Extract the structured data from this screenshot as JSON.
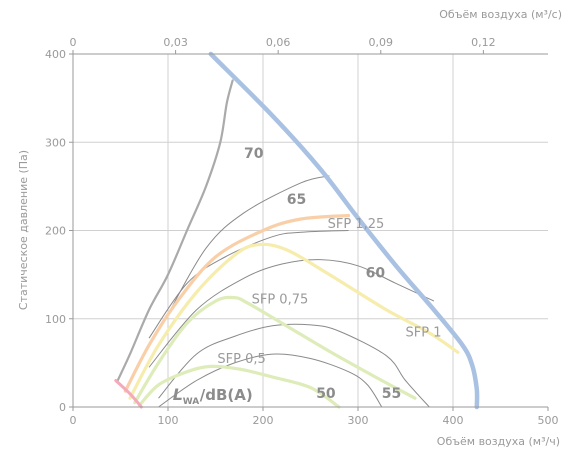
{
  "chart_data": {
    "type": "line",
    "xlabel": "Объём воздуха (м³/ч)",
    "x2label": "Объём воздуха (м³/с)",
    "ylabel": "Статическое давление (Па)",
    "xlim": [
      0,
      500
    ],
    "ylim": [
      0,
      400
    ],
    "x2lim": [
      0,
      0.1389
    ],
    "xticks": [
      "0",
      "100",
      "200",
      "300",
      "400",
      "500"
    ],
    "yticks": [
      "0",
      "100",
      "200",
      "300",
      "400"
    ],
    "x2ticks": [
      "0",
      "0,03",
      "0,06",
      "0,09",
      "0,12"
    ],
    "x2tick_values": [
      0,
      0.03,
      0.06,
      0.09,
      0.12
    ],
    "grid": true,
    "noise_unit_label": {
      "main": "L",
      "sub": "WA",
      "rest": "/dB(A)"
    },
    "series": [
      {
        "name": "fan-curve-max",
        "color": "#a9c1e2",
        "points": [
          [
            145,
            400
          ],
          [
            210,
            330
          ],
          [
            260,
            270
          ],
          [
            300,
            214
          ],
          [
            340,
            160
          ],
          [
            380,
            110
          ],
          [
            410,
            70
          ],
          [
            420,
            48
          ],
          [
            425,
            20
          ],
          [
            425,
            0
          ]
        ]
      },
      {
        "name": "left-limit",
        "color": "#aaaaaa",
        "points": [
          [
            47,
            30
          ],
          [
            60,
            60
          ],
          [
            80,
            110
          ],
          [
            100,
            150
          ],
          [
            120,
            200
          ],
          [
            140,
            250
          ],
          [
            155,
            300
          ],
          [
            162,
            345
          ],
          [
            168,
            370
          ]
        ]
      },
      {
        "name": "SFP 1,25",
        "color": "#f9cfa8",
        "points": [
          [
            55,
            18
          ],
          [
            80,
            70
          ],
          [
            110,
            120
          ],
          [
            150,
            170
          ],
          [
            200,
            200
          ],
          [
            240,
            213
          ],
          [
            290,
            217
          ]
        ]
      },
      {
        "name": "SFP 1",
        "color": "#f6ecac",
        "points": [
          [
            60,
            10
          ],
          [
            90,
            70
          ],
          [
            130,
            130
          ],
          [
            170,
            172
          ],
          [
            195,
            184
          ],
          [
            225,
            178
          ],
          [
            270,
            150
          ],
          [
            330,
            110
          ],
          [
            375,
            84
          ],
          [
            405,
            62
          ]
        ]
      },
      {
        "name": "SFP 0,75",
        "color": "#ddecb8",
        "points": [
          [
            65,
            5
          ],
          [
            90,
            50
          ],
          [
            120,
            95
          ],
          [
            150,
            120
          ],
          [
            170,
            124
          ],
          [
            185,
            117
          ],
          [
            220,
            95
          ],
          [
            270,
            63
          ],
          [
            320,
            33
          ],
          [
            360,
            10
          ]
        ]
      },
      {
        "name": "SFP 0,5",
        "color": "#ddecb8",
        "points": [
          [
            70,
            2
          ],
          [
            90,
            25
          ],
          [
            120,
            40
          ],
          [
            145,
            46
          ],
          [
            175,
            43
          ],
          [
            210,
            34
          ],
          [
            250,
            22
          ],
          [
            280,
            0
          ]
        ]
      }
    ],
    "iso_noise_curves": [
      {
        "label": "70",
        "points": [
          [
            100,
            105
          ],
          [
            140,
            180
          ],
          [
            180,
            220
          ],
          [
            240,
            254
          ],
          [
            270,
            262
          ]
        ]
      },
      {
        "label": "65",
        "points": [
          [
            80,
            78
          ],
          [
            120,
            140
          ],
          [
            160,
            170
          ],
          [
            210,
            193
          ],
          [
            240,
            198
          ],
          [
            290,
            200
          ]
        ]
      },
      {
        "label": "60",
        "points": [
          [
            80,
            45
          ],
          [
            130,
            110
          ],
          [
            180,
            146
          ],
          [
            220,
            162
          ],
          [
            260,
            167
          ],
          [
            300,
            160
          ],
          [
            340,
            140
          ],
          [
            380,
            120
          ]
        ]
      },
      {
        "label": "55",
        "points": [
          [
            90,
            10
          ],
          [
            130,
            60
          ],
          [
            170,
            80
          ],
          [
            210,
            92
          ],
          [
            250,
            93
          ],
          [
            280,
            86
          ],
          [
            330,
            58
          ],
          [
            350,
            30
          ],
          [
            375,
            0
          ]
        ]
      },
      {
        "label": "50",
        "points": [
          [
            90,
            0
          ],
          [
            130,
            30
          ],
          [
            170,
            50
          ],
          [
            210,
            60
          ],
          [
            250,
            55
          ],
          [
            290,
            40
          ],
          [
            310,
            25
          ],
          [
            325,
            0
          ]
        ]
      }
    ],
    "low_limit": {
      "color": "#f4aab9",
      "points": [
        [
          45,
          30
        ],
        [
          60,
          15
        ],
        [
          72,
          0
        ]
      ]
    },
    "curve_labels": [
      {
        "text": "SFP 1,25",
        "x": 268,
        "y": 203
      },
      {
        "text": "SFP 1",
        "x": 350,
        "y": 80
      },
      {
        "text": "SFP 0,75",
        "x": 188,
        "y": 117
      },
      {
        "text": "SFP 0,5",
        "x": 152,
        "y": 50
      }
    ],
    "noise_labels": [
      {
        "text": "70",
        "x": 180,
        "y": 282
      },
      {
        "text": "65",
        "x": 225,
        "y": 230
      },
      {
        "text": "60",
        "x": 308,
        "y": 147
      },
      {
        "text": "55",
        "x": 325,
        "y": 10
      },
      {
        "text": "50",
        "x": 256,
        "y": 10
      }
    ],
    "lwa_label_pos": {
      "x": 105,
      "y": 8
    }
  }
}
